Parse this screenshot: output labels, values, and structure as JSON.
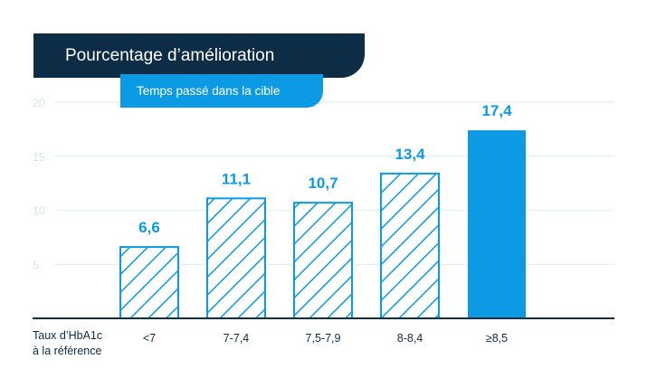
{
  "chart_data": {
    "type": "bar",
    "title": "Pourcentage d’amélioration",
    "subtitle": "Temps passé dans la cible",
    "xlabel": [
      "Taux d’HbA1c",
      "à la référence"
    ],
    "ylabel": "",
    "categories": [
      "<7",
      "7-7,4",
      "7,5-7,9",
      "8-8,4",
      "≥8,5"
    ],
    "values": [
      6.6,
      11.1,
      10.7,
      13.4,
      17.4
    ],
    "value_labels": [
      "6,6",
      "11,1",
      "10,7",
      "13,4",
      "17,4"
    ],
    "styles": [
      "hatched",
      "hatched",
      "hatched",
      "hatched",
      "solid"
    ],
    "yticks": [
      5,
      10,
      15,
      20
    ],
    "ylim": [
      0,
      20
    ],
    "grid": true,
    "legend": "none"
  },
  "colors": {
    "navy": "#0d2c45",
    "accent": "#0b9ae3",
    "grid": "#e3f1fa",
    "tick": "#d3e6f3"
  }
}
